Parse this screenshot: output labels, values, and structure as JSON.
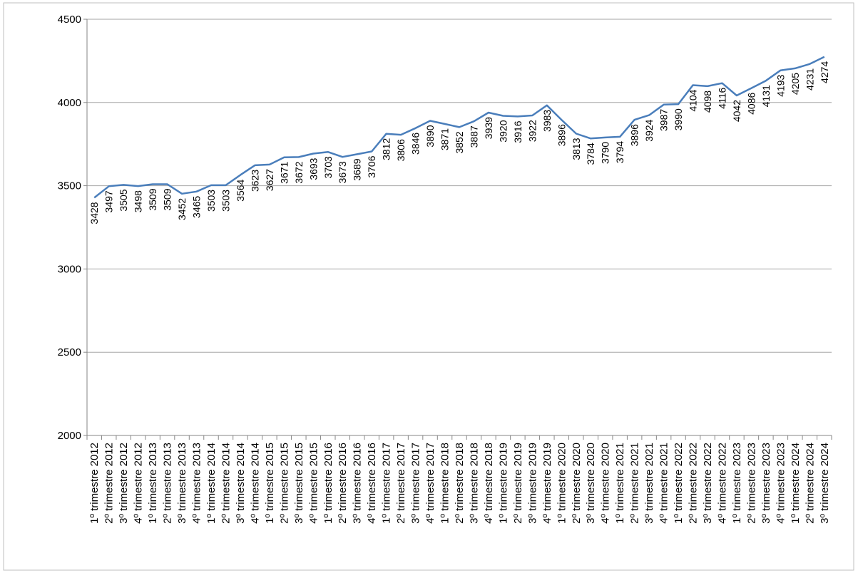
{
  "chart_data": {
    "type": "line",
    "categories": [
      "1º trimestre 2012",
      "2º trimestre 2012",
      "3º trimestre 2012",
      "4º trimestre 2012",
      "1º trimestre 2013",
      "2º trimestre 2013",
      "3º trimestre 2013",
      "4º trimestre 2013",
      "1º trimestre 2014",
      "2º trimestre 2014",
      "3º trimestre 2014",
      "4º trimestre 2014",
      "1º trimestre 2015",
      "2º trimestre 2015",
      "3º trimestre 2015",
      "4º trimestre 2015",
      "1º trimestre 2016",
      "2º trimestre 2016",
      "3º trimestre 2016",
      "4º trimestre 2016",
      "1º trimestre 2017",
      "2º trimestre 2017",
      "3º trimestre 2017",
      "4º trimestre 2017",
      "1º trimestre 2018",
      "2º trimestre 2018",
      "3º trimestre 2018",
      "4º trimestre 2018",
      "1º trimestre 2019",
      "2º trimestre 2019",
      "3º trimestre 2019",
      "4º trimestre 2019",
      "1º trimestre 2020",
      "2º trimestre 2020",
      "3º trimestre 2020",
      "4º trimestre 2020",
      "1º trimestre 2021",
      "2º trimestre 2021",
      "3º trimestre 2021",
      "4º trimestre 2021",
      "1º trimestre 2022",
      "2º trimestre 2022",
      "3º trimestre 2022",
      "4º trimestre 2022",
      "1º trimestre 2023",
      "2º trimestre 2023",
      "3º trimestre 2023",
      "4º trimestre 2023",
      "1º trimestre 2024",
      "2º trimestre 2024",
      "3º trimestre 2024"
    ],
    "values": [
      3428,
      3497,
      3505,
      3498,
      3509,
      3509,
      3452,
      3465,
      3503,
      3503,
      3564,
      3623,
      3627,
      3671,
      3672,
      3693,
      3703,
      3673,
      3689,
      3706,
      3812,
      3806,
      3846,
      3890,
      3871,
      3852,
      3887,
      3939,
      3920,
      3916,
      3922,
      3983,
      3896,
      3813,
      3784,
      3790,
      3794,
      3896,
      3924,
      3987,
      3990,
      4104,
      4098,
      4116,
      4042,
      4086,
      4131,
      4193,
      4205,
      4231,
      4274
    ],
    "color": "#4a7ebb",
    "ylim": [
      2000,
      4500
    ],
    "yticks": [
      2000,
      2500,
      3000,
      3500,
      4000,
      4500
    ],
    "grid": true
  }
}
